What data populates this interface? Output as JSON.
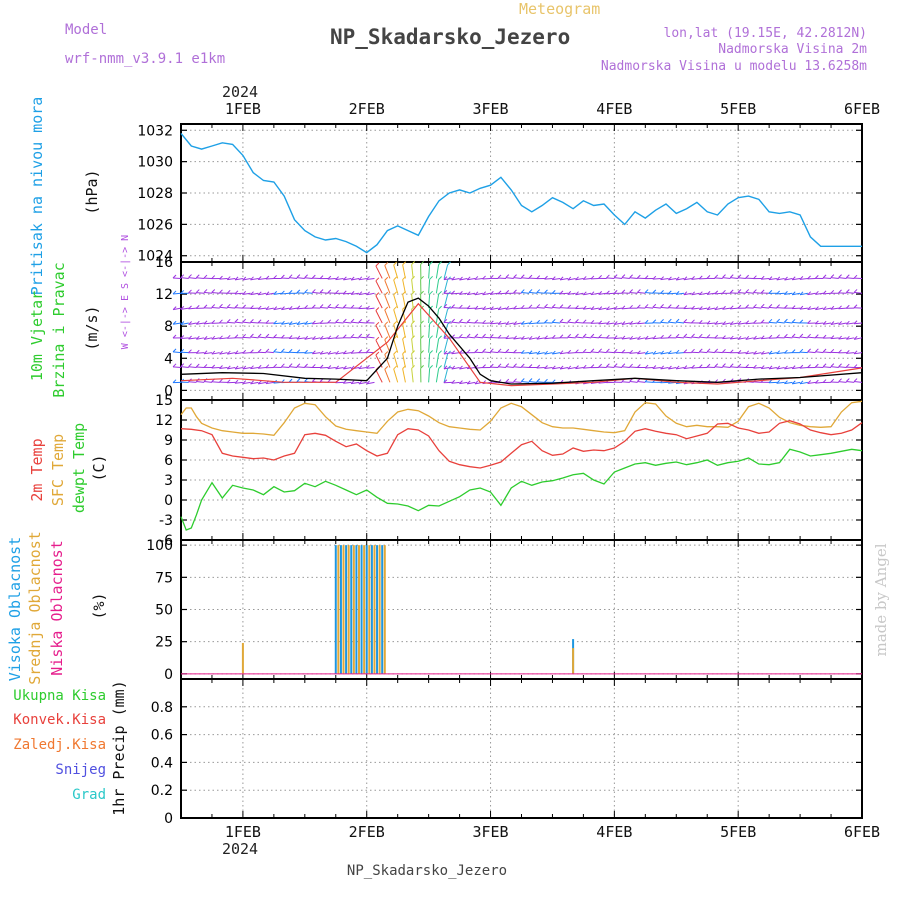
{
  "header": {
    "model_label": "Model",
    "model_name": "wrf-nmm_v3.9.1 e1km",
    "product": "Meteogram",
    "station": "NP_Skadarsko_Jezero",
    "coords": "lon,lat (19.15E, 42.2812N)",
    "elev": "Nadmorska Visina 2m",
    "model_elev": "Nadmorska Visina u modelu 13.6258m",
    "footer_station": "NP_Skadarsko_Jezero",
    "credit": "made by Angel"
  },
  "colors": {
    "pressure": "#1ea0e6",
    "temp2m": "#e8413c",
    "sfc": "#e0a838",
    "dewpt": "#2ecc2e",
    "wind_purple": "#9a32e0",
    "wind_blue": "#1e78ff",
    "high": "#1e96e0",
    "mid": "#e0a838",
    "low": "#e61e8c",
    "total": "#2ecc2e",
    "conv": "#e8413c",
    "frz": "#f07830",
    "snow": "#5050e0",
    "grad": "#2ac8c8"
  },
  "chart_data": [
    {
      "type": "line",
      "panel": "pressure",
      "ylabel_left": "Pritisak na nivou mora",
      "ylabel": "(hPa)",
      "ylim": [
        1023.6,
        1032.4
      ],
      "yticks": [
        1024,
        1026,
        1028,
        1030,
        1032
      ],
      "xlim": [
        0,
        132
      ],
      "x_unit": "hours since 2024-01-31 12Z",
      "series": [
        {
          "x": [
            0,
            2,
            4,
            6,
            8,
            10,
            12,
            14,
            16,
            18,
            20,
            22,
            24,
            26,
            28,
            30,
            32,
            34,
            36,
            38,
            40,
            42,
            44,
            46,
            48,
            50,
            52,
            54,
            56,
            58,
            60,
            62,
            64,
            66,
            68,
            70,
            72,
            74,
            76,
            78,
            80,
            82,
            84,
            86,
            88,
            90,
            92,
            94,
            96,
            98,
            100,
            102,
            104,
            106,
            108,
            110,
            112,
            114,
            116,
            118,
            120,
            122,
            124,
            126,
            128,
            130,
            132
          ],
          "values": [
            1031.8,
            1031.0,
            1030.8,
            1031.0,
            1031.2,
            1031.1,
            1030.4,
            1029.3,
            1028.8,
            1028.7,
            1027.8,
            1026.3,
            1025.6,
            1025.2,
            1025.0,
            1025.1,
            1024.9,
            1024.6,
            1024.2,
            1024.7,
            1025.6,
            1025.9,
            1025.6,
            1025.3,
            1026.5,
            1027.5,
            1028.0,
            1028.2,
            1028.0,
            1028.3,
            1028.5,
            1029.0,
            1028.2,
            1027.2,
            1026.8,
            1027.2,
            1027.7,
            1027.4,
            1027.0,
            1027.5,
            1027.2,
            1027.3,
            1026.6,
            1026.0,
            1026.8,
            1026.4,
            1026.9,
            1027.3,
            1026.7,
            1027.0,
            1027.4,
            1026.8,
            1026.6,
            1027.3,
            1027.7,
            1027.8,
            1027.6,
            1026.8,
            1026.7,
            1026.8,
            1026.6,
            1025.2,
            1024.6,
            1024.6,
            1024.6,
            1024.6,
            1024.6
          ]
        }
      ]
    },
    {
      "type": "line",
      "panel": "wind",
      "ylabel_left": [
        "10m Vjetar",
        "Brzina i Pravac"
      ],
      "ylabel": "(m/s)",
      "compass": "W <-|-> E  S <-|-> N",
      "ylim": [
        -1.2,
        16
      ],
      "yticks": [
        0,
        4,
        8,
        12,
        16
      ],
      "series": [
        {
          "name": "wind speed",
          "x": [
            0,
            8,
            16,
            24,
            30,
            36,
            40,
            42,
            44,
            46,
            48,
            50,
            52,
            54,
            56,
            58,
            60,
            64,
            72,
            80,
            88,
            96,
            104,
            112,
            120,
            132
          ],
          "values": [
            2.0,
            2.2,
            2.1,
            1.5,
            1.4,
            1.2,
            4.0,
            8.0,
            11.0,
            11.5,
            10.5,
            9.0,
            7.0,
            5.5,
            4.0,
            2.0,
            1.2,
            0.8,
            0.9,
            1.2,
            1.5,
            1.2,
            1.0,
            1.4,
            1.6,
            2.2
          ]
        },
        {
          "name": "gust",
          "x": [
            0,
            10,
            20,
            30,
            40,
            46,
            52,
            58,
            64,
            72,
            80,
            88,
            96,
            104,
            112,
            120,
            132
          ],
          "values": [
            1.2,
            1.5,
            1.0,
            1.0,
            6.0,
            10.8,
            6.5,
            1.0,
            0.6,
            0.8,
            1.0,
            1.5,
            1.0,
            0.8,
            1.2,
            1.6,
            2.8
          ]
        }
      ]
    },
    {
      "type": "line",
      "panel": "temperature",
      "ylabel_left": [
        "2m Temp",
        "SFC Temp",
        "dewpt Temp"
      ],
      "ylabel": "(C)",
      "ylim": [
        -6,
        15
      ],
      "yticks": [
        -6,
        -3,
        0,
        3,
        6,
        9,
        12,
        15
      ],
      "series": [
        {
          "name": "2m Temp",
          "x": [
            0,
            2,
            4,
            6,
            8,
            10,
            12,
            14,
            16,
            18,
            20,
            22,
            24,
            26,
            28,
            30,
            32,
            34,
            36,
            38,
            40,
            42,
            44,
            46,
            48,
            50,
            52,
            54,
            56,
            58,
            60,
            62,
            64,
            66,
            68,
            70,
            72,
            74,
            76,
            78,
            80,
            82,
            84,
            86,
            88,
            90,
            92,
            94,
            96,
            98,
            100,
            102,
            104,
            106,
            108,
            110,
            112,
            114,
            116,
            118,
            120,
            122,
            124,
            126,
            128,
            130,
            132
          ],
          "values": [
            10.7,
            10.6,
            10.4,
            9.8,
            7.0,
            6.6,
            6.4,
            6.2,
            6.3,
            6.0,
            6.6,
            7.0,
            9.8,
            10.0,
            9.7,
            8.8,
            8.0,
            8.4,
            7.4,
            6.6,
            7.0,
            9.8,
            10.7,
            10.5,
            9.6,
            7.4,
            5.8,
            5.3,
            5.0,
            4.8,
            5.2,
            5.7,
            7.0,
            8.3,
            8.8,
            7.4,
            6.7,
            6.9,
            7.8,
            7.3,
            7.5,
            7.4,
            7.8,
            8.8,
            10.3,
            10.7,
            10.3,
            10.0,
            9.8,
            9.2,
            9.6,
            10.0,
            11.4,
            11.5,
            10.8,
            10.5,
            10.0,
            10.2,
            11.5,
            11.9,
            11.4,
            10.5,
            10.1,
            9.8,
            10.0,
            10.5,
            11.6
          ]
        },
        {
          "name": "SFC Temp",
          "x": [
            0,
            1,
            2,
            3,
            4,
            6,
            8,
            10,
            12,
            14,
            16,
            18,
            20,
            22,
            24,
            26,
            28,
            30,
            32,
            34,
            36,
            38,
            40,
            42,
            44,
            46,
            48,
            50,
            52,
            54,
            56,
            58,
            60,
            62,
            64,
            66,
            68,
            70,
            72,
            74,
            76,
            78,
            80,
            82,
            84,
            86,
            88,
            90,
            92,
            94,
            96,
            98,
            100,
            102,
            104,
            106,
            108,
            110,
            112,
            114,
            116,
            118,
            120,
            122,
            124,
            126,
            128,
            130,
            132
          ],
          "values": [
            12.8,
            13.8,
            13.8,
            12.5,
            11.5,
            10.8,
            10.4,
            10.2,
            10.0,
            10.0,
            9.9,
            9.7,
            11.6,
            13.8,
            14.5,
            14.3,
            12.5,
            11.1,
            10.6,
            10.4,
            10.2,
            10.0,
            11.8,
            13.2,
            13.6,
            13.4,
            12.6,
            11.6,
            11.0,
            10.8,
            10.6,
            10.5,
            11.8,
            13.8,
            14.5,
            14.0,
            12.8,
            11.6,
            11.0,
            10.8,
            10.8,
            10.6,
            10.4,
            10.2,
            10.1,
            10.4,
            13.2,
            14.6,
            14.4,
            12.6,
            11.5,
            11.0,
            11.2,
            11.0,
            11.0,
            10.9,
            11.8,
            14.0,
            14.5,
            13.8,
            12.4,
            11.6,
            11.2,
            11.0,
            10.9,
            11.0,
            13.2,
            14.6,
            14.8
          ]
        },
        {
          "name": "dewpt Temp",
          "x": [
            0,
            1,
            2,
            3,
            4,
            6,
            8,
            10,
            12,
            14,
            16,
            18,
            20,
            22,
            24,
            26,
            28,
            30,
            32,
            34,
            36,
            38,
            40,
            42,
            44,
            46,
            48,
            50,
            52,
            54,
            56,
            58,
            60,
            62,
            64,
            66,
            68,
            70,
            72,
            74,
            76,
            78,
            80,
            82,
            84,
            86,
            88,
            90,
            92,
            94,
            96,
            98,
            100,
            102,
            104,
            106,
            108,
            110,
            112,
            114,
            116,
            118,
            120,
            122,
            124,
            126,
            128,
            130,
            132
          ],
          "values": [
            -2.5,
            -4.5,
            -4.2,
            -2.2,
            0.0,
            2.6,
            0.3,
            2.2,
            1.8,
            1.5,
            0.8,
            2.0,
            1.2,
            1.4,
            2.5,
            2.0,
            2.8,
            2.2,
            1.5,
            0.8,
            1.5,
            0.4,
            -0.5,
            -0.6,
            -0.9,
            -1.6,
            -0.8,
            -0.9,
            -0.2,
            0.5,
            1.5,
            1.8,
            1.2,
            -0.8,
            1.8,
            2.8,
            2.2,
            2.7,
            2.9,
            3.3,
            3.8,
            4.0,
            3.0,
            2.4,
            4.2,
            4.8,
            5.4,
            5.6,
            5.2,
            5.5,
            5.7,
            5.3,
            5.6,
            6.0,
            5.2,
            5.6,
            5.8,
            6.3,
            5.4,
            5.3,
            5.6,
            7.6,
            7.2,
            6.6,
            6.8,
            7.0,
            7.3,
            7.6,
            7.4
          ]
        }
      ]
    },
    {
      "type": "bar",
      "panel": "cloud",
      "ylabel_left": [
        "Visoka Oblacnost",
        "Srednja Oblacnost",
        "Niska Oblacnost"
      ],
      "ylabel": "(%)",
      "ylim": [
        -4,
        104
      ],
      "yticks": [
        0,
        25,
        50,
        75,
        100
      ],
      "series": [
        {
          "name": "Visoka Oblacnost",
          "x": [
            30,
            31,
            32,
            33,
            34,
            35,
            36,
            37,
            38,
            39,
            76
          ],
          "values": [
            100,
            100,
            100,
            100,
            100,
            100,
            100,
            100,
            100,
            100,
            27
          ]
        },
        {
          "name": "Srednja Oblacnost",
          "x": [
            12,
            30.5,
            31.5,
            32.5,
            33.5,
            34.5,
            35.5,
            36.5,
            37.5,
            38.5,
            39.5,
            76
          ],
          "values": [
            24,
            100,
            100,
            100,
            100,
            100,
            100,
            100,
            100,
            100,
            100,
            20
          ]
        },
        {
          "name": "Niska Oblacnost",
          "x": [],
          "values": []
        }
      ]
    },
    {
      "type": "bar",
      "panel": "precip",
      "ylabel_left": [
        "Ukupna Kisa",
        "Konvek.Kisa",
        "Zaledj.Kisa",
        "Snijeg",
        "Grad"
      ],
      "ylabel": "1hr Precip (mm)",
      "ylim": [
        0,
        1.0
      ],
      "yticks": [
        0,
        0.2,
        0.4,
        0.6,
        0.8
      ],
      "series": [
        {
          "name": "Ukupna Kisa",
          "x": [],
          "values": []
        },
        {
          "name": "Konvek.Kisa",
          "x": [],
          "values": []
        },
        {
          "name": "Zaledj.Kisa",
          "x": [],
          "values": []
        },
        {
          "name": "Snijeg",
          "x": [],
          "values": []
        },
        {
          "name": "Grad",
          "x": [],
          "values": []
        }
      ]
    }
  ],
  "xaxis": {
    "year": "2024",
    "ticks": [
      {
        "label": "1FEB",
        "x": 12
      },
      {
        "label": "2FEB",
        "x": 36
      },
      {
        "label": "3FEB",
        "x": 60
      },
      {
        "label": "4FEB",
        "x": 84
      },
      {
        "label": "5FEB",
        "x": 108
      },
      {
        "label": "6FEB",
        "x": 132
      }
    ],
    "minor_every": 6,
    "grid": true
  }
}
